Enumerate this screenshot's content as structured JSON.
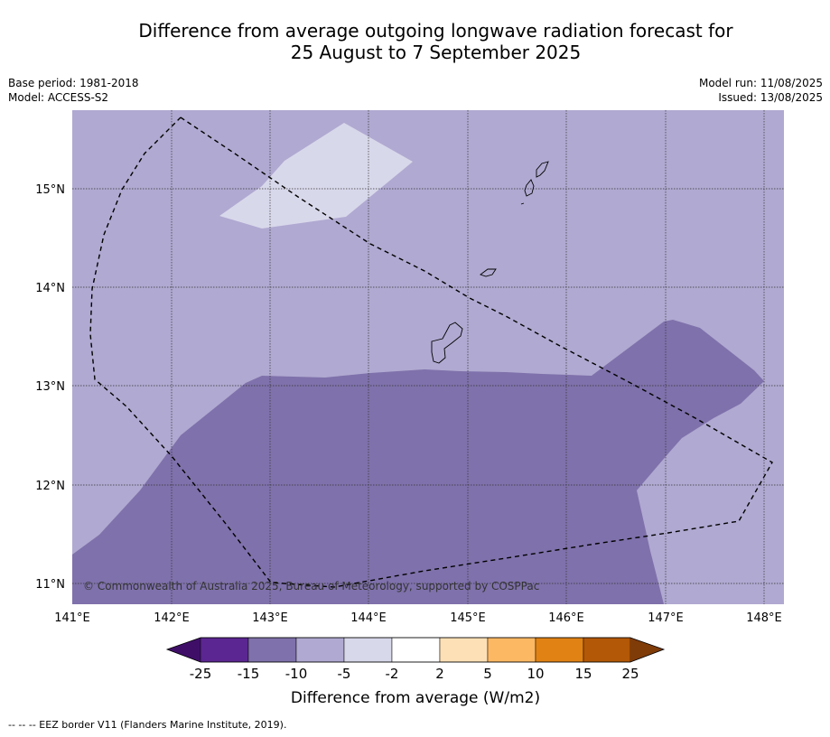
{
  "title": {
    "line1": "Difference from average outgoing longwave radiation forecast for",
    "line2": "25 August to 7 September 2025"
  },
  "meta_left": {
    "base_period": "Base period: 1981-2018",
    "model": "Model: ACCESS-S2"
  },
  "meta_right": {
    "model_run": "Model run: 11/08/2025",
    "issued": "Issued: 13/08/2025"
  },
  "map": {
    "lon_labels": [
      "141°E",
      "142°E",
      "143°E",
      "144°E",
      "145°E",
      "146°E",
      "147°E",
      "148°E"
    ],
    "lat_labels": [
      "15°N",
      "14°N",
      "13°N",
      "12°N",
      "11°N"
    ],
    "copyright": "© Commonwealth of Australia 2025, Bureau of Meteorology, supported by COSPPac",
    "colors": {
      "background_class": "#b0a9d1",
      "lighter_class": "#d8d8eb",
      "darker_class": "#7f71ab"
    }
  },
  "legend": {
    "ticks": [
      "-25",
      "-15",
      "-10",
      "-5",
      "-2",
      "2",
      "5",
      "10",
      "15",
      "25"
    ],
    "colors": [
      "#3f0f68",
      "#5b2691",
      "#7f71ab",
      "#b0a9d1",
      "#d8d8eb",
      "#ffffff",
      "#fde0b6",
      "#fdb863",
      "#e08214",
      "#b35806",
      "#7f3b08"
    ],
    "label": "Difference from average (W/m2)"
  },
  "footer": "--  --  -- EEZ border V11 (Flanders Marine Institute, 2019)."
}
